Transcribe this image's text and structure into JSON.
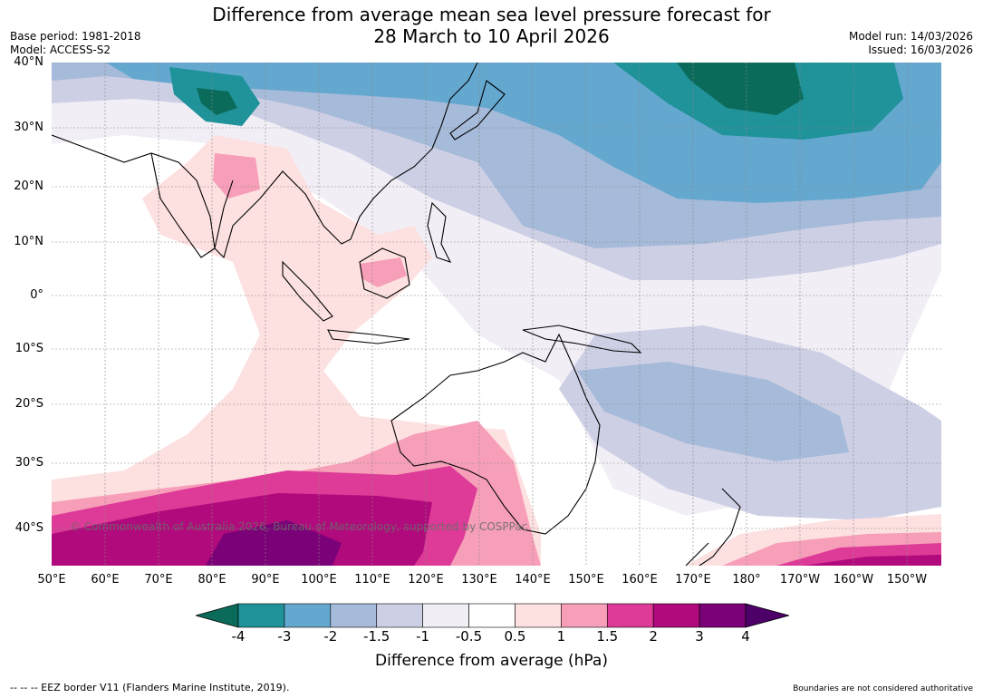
{
  "title_line1": "Difference from average mean sea level pressure forecast for",
  "title_line2": "28 March to 10 April 2026",
  "base_period": "Base period: 1981-2018",
  "model": "Model: ACCESS-S2",
  "model_run": "Model run: 14/03/2026",
  "issued": "Issued: 16/03/2026",
  "lat_labels": [
    "40°N",
    "30°N",
    "20°N",
    "10°N",
    "0°",
    "10°S",
    "20°S",
    "30°S",
    "40°S"
  ],
  "lon_labels": [
    "50°E",
    "60°E",
    "70°E",
    "80°E",
    "90°E",
    "100°E",
    "110°E",
    "120°E",
    "130°E",
    "140°E",
    "150°E",
    "160°E",
    "170°E",
    "180°",
    "170°W",
    "160°W",
    "150°W"
  ],
  "copyright": "© Commonwealth of Australia 2026, Bureau of Meteorology, supported by COSPPac",
  "colorbar": {
    "label": "Difference from average (hPa)",
    "ticks": [
      "-4",
      "-3",
      "-2",
      "-1.5",
      "-1",
      "-0.5",
      "0.5",
      "1",
      "1.5",
      "2",
      "3",
      "4"
    ],
    "colors": [
      "#0a6b5a",
      "#20929a",
      "#64a8cf",
      "#a6bad9",
      "#cdcfe5",
      "#f2eef6",
      "#ffffff",
      "#fde0e0",
      "#f79fb9",
      "#dd3b97",
      "#b00a7c",
      "#7a0177",
      "#4d0068"
    ]
  },
  "footer_left": "--  --  -- EEZ border V11 (Flanders Marine Institute, 2019).",
  "footer_right": "Boundaries are not considered authoritative"
}
